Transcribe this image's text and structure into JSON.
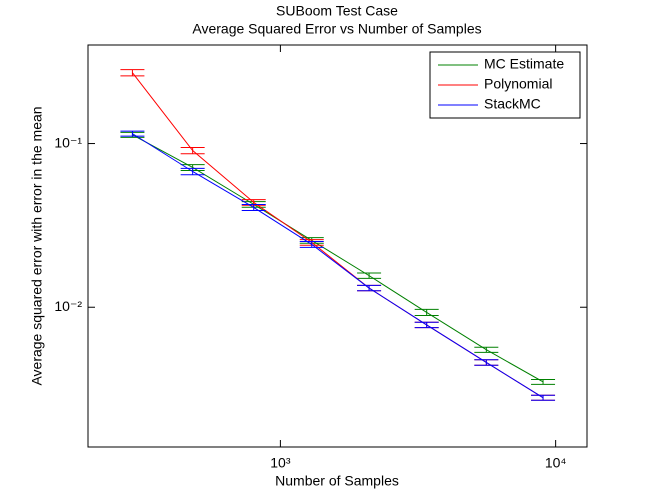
{
  "chart_data": {
    "type": "line",
    "title": "SUBoom Test Case",
    "subtitle": "Average Squared Error vs Number of Samples",
    "x_label": "Number of Samples",
    "y_label": "Average squared error with error in the mean",
    "x": [
      290,
      480,
      800,
      1300,
      2100,
      3400,
      5600,
      9000
    ],
    "series": [
      {
        "name": "MC Estimate",
        "color": "#008000",
        "values": [
          0.113,
          0.0714,
          0.0425,
          0.0256,
          0.0156,
          0.0093,
          0.0055,
          0.0035
        ],
        "errors": [
          0.004,
          0.003,
          0.0017,
          0.001,
          0.0006,
          0.0004,
          0.0002,
          0.00012
        ]
      },
      {
        "name": "Polynomial",
        "color": "#ff0000",
        "values": [
          0.271,
          0.0906,
          0.0437,
          0.0249,
          0.0131,
          0.0078,
          0.0046,
          0.0028
        ],
        "errors": [
          0.012,
          0.004,
          0.0017,
          0.001,
          0.0005,
          0.0003,
          0.00018,
          0.0001
        ]
      },
      {
        "name": "StackMC",
        "color": "#0000ff",
        "values": [
          0.115,
          0.0675,
          0.0407,
          0.0242,
          0.0131,
          0.0078,
          0.0046,
          0.0028
        ],
        "errors": [
          0.004,
          0.003,
          0.0017,
          0.001,
          0.0005,
          0.0003,
          0.00018,
          0.0001
        ]
      }
    ],
    "xlim": [
      200,
      13000
    ],
    "ylim": [
      0.0014,
      0.4
    ],
    "xticks": [
      {
        "value": 1000,
        "label": "10³"
      },
      {
        "value": 10000,
        "label": "10⁴"
      }
    ],
    "yticks": [
      {
        "value": 0.01,
        "label": "10⁻²"
      },
      {
        "value": 0.1,
        "label": "10⁻¹"
      }
    ],
    "xscale": "log",
    "yscale": "log",
    "grid": false,
    "legend": "upper right"
  }
}
